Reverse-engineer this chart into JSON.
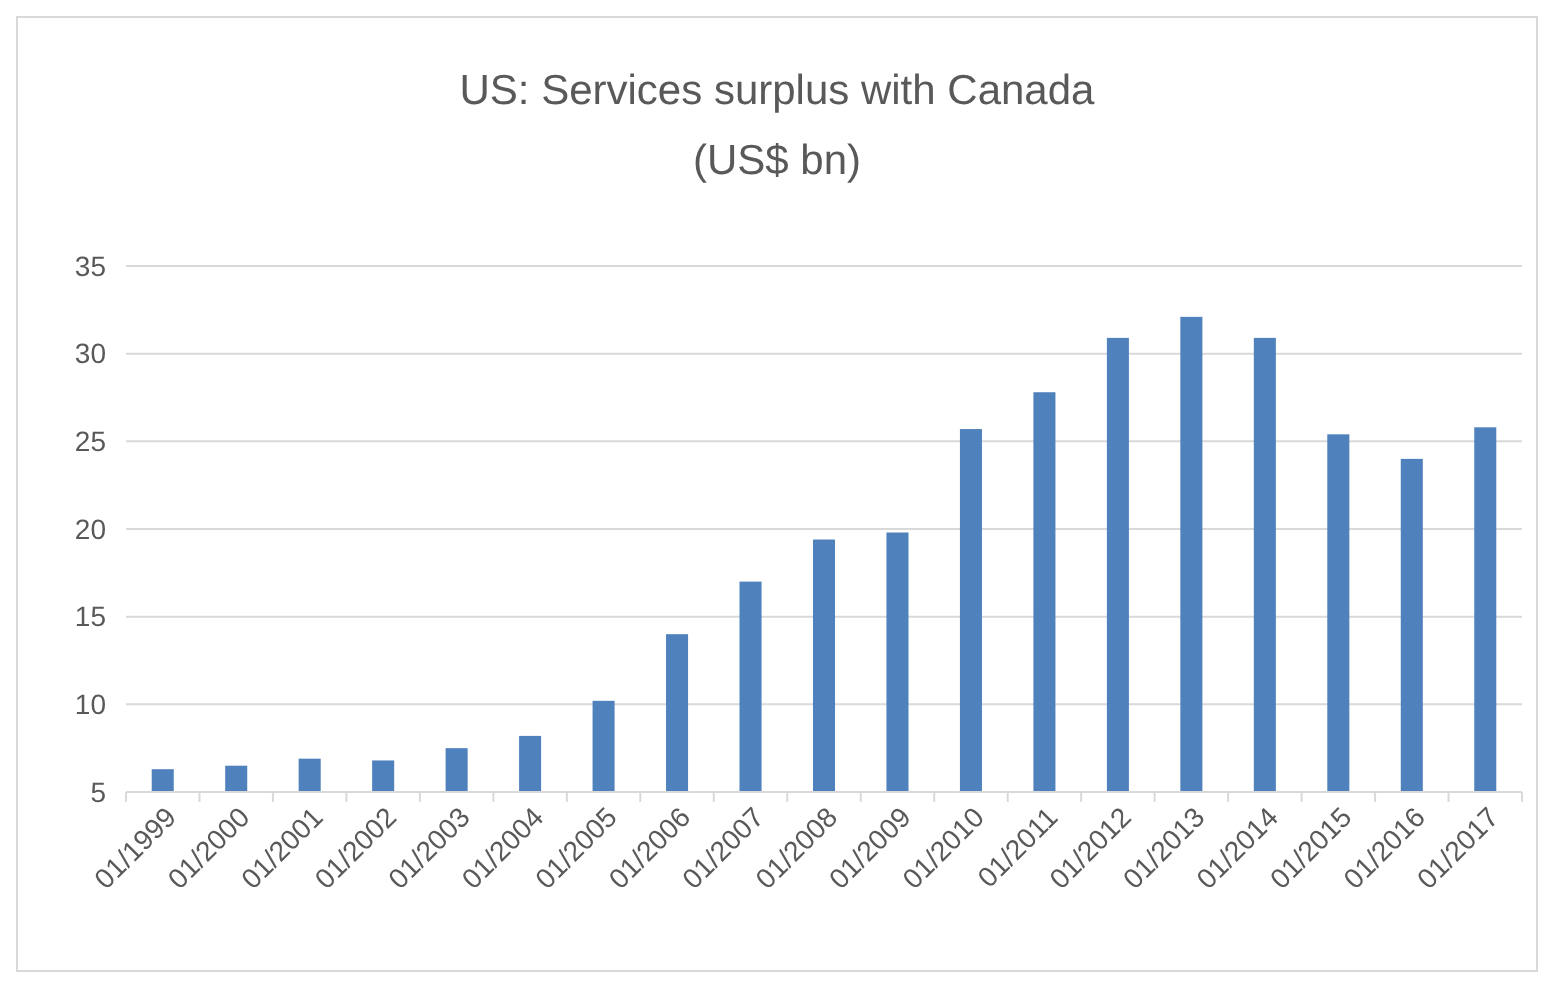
{
  "chart_data": {
    "type": "bar",
    "title": "US: Services surplus with Canada",
    "subtitle": "(US$ bn)",
    "categories": [
      "01/1999",
      "01/2000",
      "01/2001",
      "01/2002",
      "01/2003",
      "01/2004",
      "01/2005",
      "01/2006",
      "01/2007",
      "01/2008",
      "01/2009",
      "01/2010",
      "01/2011",
      "01/2012",
      "01/2013",
      "01/2014",
      "01/2015",
      "01/2016",
      "01/2017"
    ],
    "values": [
      6.3,
      6.5,
      6.9,
      6.8,
      7.5,
      8.2,
      10.2,
      14.0,
      17.0,
      19.4,
      19.8,
      25.7,
      27.8,
      30.9,
      32.1,
      30.9,
      25.4,
      24.0,
      25.8
    ],
    "color": "#4f81bd",
    "ylim": [
      5,
      35
    ],
    "yticks": [
      5,
      10,
      15,
      20,
      25,
      30,
      35
    ],
    "grid": "y"
  }
}
